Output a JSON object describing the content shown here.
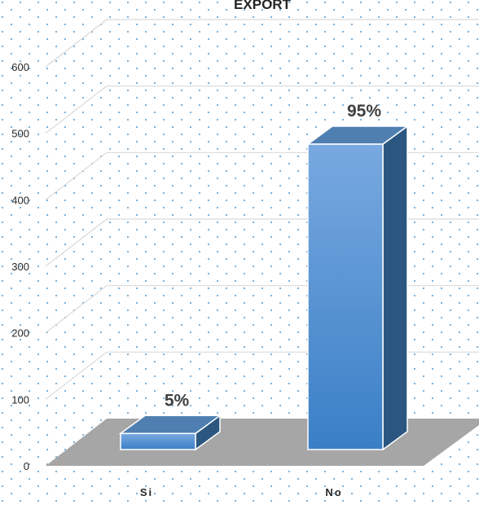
{
  "chart_data": {
    "type": "bar",
    "title": "EXPORT",
    "categories": [
      "Si",
      "No"
    ],
    "values": [
      25,
      475
    ],
    "data_labels": [
      "5%",
      "95%"
    ],
    "yticks": [
      0,
      100,
      200,
      300,
      400,
      500,
      600
    ],
    "ylim": [
      0,
      600
    ],
    "xlabel": "",
    "ylabel": "",
    "grid": true,
    "legend": "none",
    "three_d": true,
    "colors": {
      "bar_front_top": "#78a9e0",
      "bar_front_bottom": "#3a7fc6",
      "bar_side": "#2b5680",
      "bar_top": "#4f7fb1",
      "floor": "#a6a6a6",
      "gridline": "#d9d9d9",
      "dots": "#7ab0da",
      "label_text": "#404040"
    }
  }
}
